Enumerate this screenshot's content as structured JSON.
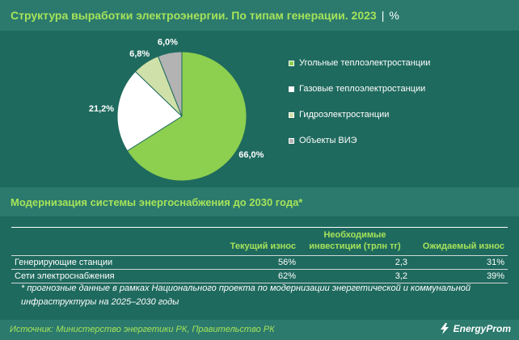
{
  "header": {
    "title": "Структура выработки электроэнергии. По типам генерации. 2023",
    "separator": "|",
    "unit": "%"
  },
  "chart_data": {
    "type": "pie",
    "title": "Структура выработки электроэнергии. По типам генерации. 2023",
    "unit": "%",
    "categories": [
      "Угольные теплоэлектростанции",
      "Газовые теплоэлектростанции",
      "Гидроэлектростанции",
      "Объекты ВИЭ"
    ],
    "values": [
      66.0,
      21.2,
      6.8,
      6.0
    ],
    "value_labels": [
      "66,0%",
      "21,2%",
      "6,8%",
      "6,0%"
    ],
    "colors": [
      "#8dcf4f",
      "#ffffff",
      "#cfe0a8",
      "#b3b3b3"
    ],
    "legend_position": "right"
  },
  "section2": {
    "title": "Модернизация системы энергоснабжения до 2030 года*"
  },
  "table": {
    "headers": [
      "",
      "Текущий износ",
      "Необходимые инвестиции (трлн тг)",
      "Ожидаемый износ"
    ],
    "rows": [
      [
        "Генерирующие станции",
        "56%",
        "2,3",
        "31%"
      ],
      [
        "Сети электроснабжения",
        "62%",
        "3,2",
        "39%"
      ]
    ]
  },
  "footnote": {
    "line1": "* прогнозные данные в рамках Национального проекта по модернизации энергетической и коммунальной",
    "line2": "инфраструктуры на 2025–2030  годы"
  },
  "footer": {
    "source": "Источник: Министерство энергетики РК, Правительство РК",
    "brand": "EnergyProm"
  }
}
